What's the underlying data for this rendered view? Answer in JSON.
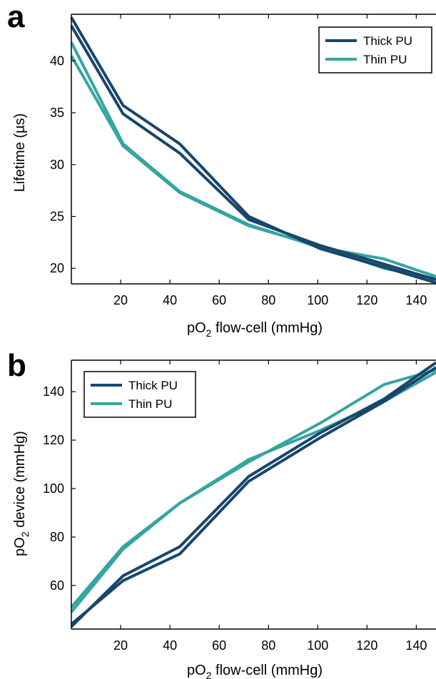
{
  "colors": {
    "thick": "#18466b",
    "thin": "#35a5a1",
    "axis": "#000000"
  },
  "chart_data": [
    {
      "type": "line",
      "panel_label": "a",
      "xlabel": "pO",
      "xlabel_sub": "2",
      "xlabel_rest": " flow-cell (mmHg)",
      "ylabel": "Lifetime (µs)",
      "xlim": [
        0,
        148
      ],
      "ylim": [
        18.5,
        44.5
      ],
      "xticks": [
        20,
        40,
        60,
        80,
        100,
        120,
        140
      ],
      "yticks": [
        20,
        25,
        30,
        35,
        40
      ],
      "legend_position": "top-right",
      "series": [
        {
          "name": "Thick PU",
          "color_key": "thick",
          "x": [
            0,
            21,
            44,
            72,
            101,
            127,
            148
          ],
          "y": [
            44.2,
            35.7,
            32.0,
            25.0,
            21.9,
            20.1,
            18.6
          ]
        },
        {
          "name": "",
          "color_key": "thick",
          "x": [
            0,
            21,
            44,
            72,
            101,
            127,
            148
          ],
          "y": [
            43.4,
            34.9,
            31.1,
            24.7,
            22.2,
            20.4,
            18.9
          ]
        },
        {
          "name": "Thin PU",
          "color_key": "thin",
          "x": [
            0,
            21,
            44,
            72,
            101,
            127,
            148
          ],
          "y": [
            41.8,
            32.0,
            27.4,
            24.2,
            22.0,
            20.9,
            19.2
          ]
        },
        {
          "name": "",
          "color_key": "thin",
          "x": [
            0,
            21,
            44,
            72,
            101,
            127,
            148
          ],
          "y": [
            40.5,
            31.8,
            27.3,
            24.1,
            22.1,
            20.0,
            19.0
          ]
        }
      ]
    },
    {
      "type": "line",
      "panel_label": "b",
      "xlabel": "pO",
      "xlabel_sub": "2",
      "xlabel_rest": " flow-cell (mmHg)",
      "ylabel": "pO",
      "ylabel_sub": "2",
      "ylabel_rest": " device (mmHg)",
      "xlim": [
        0,
        148
      ],
      "ylim": [
        42,
        153
      ],
      "xticks": [
        20,
        40,
        60,
        80,
        100,
        120,
        140
      ],
      "yticks": [
        60,
        80,
        100,
        120,
        140
      ],
      "legend_position": "top-left",
      "series": [
        {
          "name": "Thick PU",
          "color_key": "thick",
          "x": [
            0,
            21,
            44,
            72,
            101,
            127,
            148
          ],
          "y": [
            43,
            64,
            76,
            105,
            123,
            137,
            152
          ]
        },
        {
          "name": "",
          "color_key": "thick",
          "x": [
            0,
            21,
            44,
            72,
            101,
            127,
            148
          ],
          "y": [
            44,
            62,
            73,
            103,
            121,
            136,
            150
          ]
        },
        {
          "name": "Thin PU",
          "color_key": "thin",
          "x": [
            0,
            21,
            44,
            72,
            101,
            127,
            148
          ],
          "y": [
            51,
            76,
            94,
            111,
            127,
            143,
            149
          ]
        },
        {
          "name": "",
          "color_key": "thin",
          "x": [
            0,
            21,
            44,
            72,
            101,
            127,
            148
          ],
          "y": [
            49,
            75,
            94,
            112,
            124,
            136,
            148
          ]
        }
      ]
    }
  ]
}
